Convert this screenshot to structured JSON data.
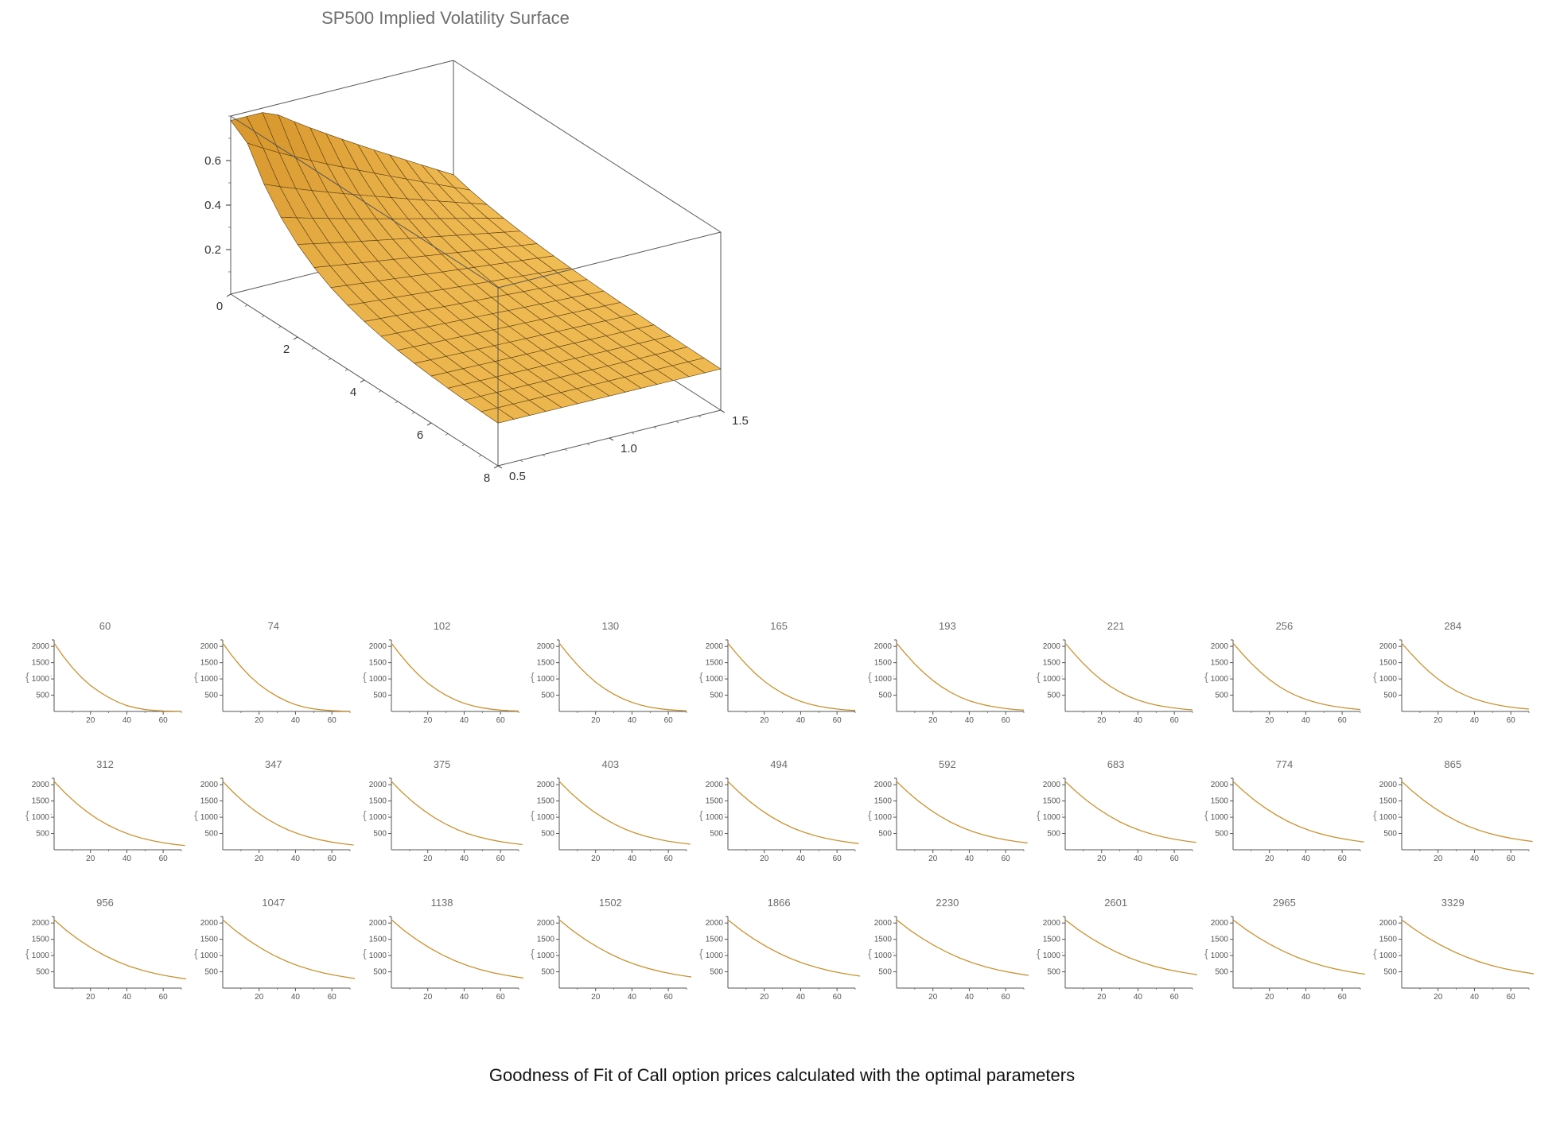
{
  "surface": {
    "title": "SP500 Implied Volatility Surface",
    "title_color": "#6e6e6e",
    "title_fontsize": 22,
    "fill_light": "#f4c15a",
    "fill_dark": "#d18e24",
    "mesh_color": "#5a3d10",
    "box_stroke": "#555555",
    "axis_color": "#333333",
    "tick_fontsize": 15,
    "x_ticks": [
      "0",
      "2",
      "4",
      "6",
      "8"
    ],
    "y_ticks": [
      "0.5",
      "1.0",
      "1.5"
    ],
    "z_ticks": [
      "0.2",
      "0.4",
      "0.6"
    ],
    "x_range": [
      0,
      8
    ],
    "y_range": [
      0.5,
      1.5
    ],
    "z_range": [
      0.2,
      0.7
    ]
  },
  "mini_grid": {
    "rows": 3,
    "cols": 9,
    "titles": [
      60,
      74,
      102,
      130,
      165,
      193,
      221,
      256,
      284,
      312,
      347,
      375,
      403,
      494,
      592,
      683,
      774,
      865,
      956,
      1047,
      1138,
      1502,
      1866,
      2230,
      2601,
      2965,
      3329
    ],
    "axis_color": "#555555",
    "tick_color": "#555555",
    "tick_fontsize": 10,
    "curve_color": "#d18e24",
    "curve_color2": "#5a8fd6",
    "curve_width": 1.2,
    "background_color": "#ffffff",
    "title_color": "#6e6e6e",
    "marker_left_char": "{",
    "marker_right_char": "}",
    "marker_mid_char": "·",
    "x_ticks": [
      20,
      40,
      60
    ],
    "y_ticks": [
      500,
      1000,
      1500,
      2000
    ],
    "xlim": [
      0,
      70
    ],
    "ylim": [
      0,
      2200
    ],
    "curves": {
      "60": [
        [
          0,
          2100
        ],
        [
          5,
          1700
        ],
        [
          10,
          1350
        ],
        [
          15,
          1050
        ],
        [
          20,
          800
        ],
        [
          25,
          600
        ],
        [
          30,
          430
        ],
        [
          35,
          290
        ],
        [
          40,
          180
        ],
        [
          45,
          110
        ],
        [
          50,
          60
        ],
        [
          55,
          30
        ],
        [
          60,
          15
        ],
        [
          65,
          8
        ],
        [
          70,
          5
        ]
      ],
      "74": [
        [
          0,
          2100
        ],
        [
          5,
          1720
        ],
        [
          10,
          1380
        ],
        [
          15,
          1080
        ],
        [
          20,
          830
        ],
        [
          25,
          630
        ],
        [
          30,
          460
        ],
        [
          35,
          320
        ],
        [
          40,
          210
        ],
        [
          45,
          130
        ],
        [
          50,
          80
        ],
        [
          55,
          45
        ],
        [
          60,
          25
        ],
        [
          65,
          12
        ],
        [
          70,
          6
        ]
      ],
      "102": [
        [
          0,
          2100
        ],
        [
          5,
          1740
        ],
        [
          10,
          1410
        ],
        [
          15,
          1120
        ],
        [
          20,
          870
        ],
        [
          25,
          670
        ],
        [
          30,
          500
        ],
        [
          35,
          360
        ],
        [
          40,
          250
        ],
        [
          45,
          170
        ],
        [
          50,
          110
        ],
        [
          55,
          70
        ],
        [
          60,
          40
        ],
        [
          65,
          22
        ],
        [
          70,
          12
        ]
      ],
      "130": [
        [
          0,
          2100
        ],
        [
          5,
          1750
        ],
        [
          10,
          1430
        ],
        [
          15,
          1150
        ],
        [
          20,
          900
        ],
        [
          25,
          700
        ],
        [
          30,
          530
        ],
        [
          35,
          390
        ],
        [
          40,
          280
        ],
        [
          45,
          195
        ],
        [
          50,
          130
        ],
        [
          55,
          85
        ],
        [
          60,
          55
        ],
        [
          65,
          33
        ],
        [
          70,
          20
        ]
      ],
      "165": [
        [
          0,
          2100
        ],
        [
          5,
          1760
        ],
        [
          10,
          1450
        ],
        [
          15,
          1170
        ],
        [
          20,
          930
        ],
        [
          25,
          730
        ],
        [
          30,
          560
        ],
        [
          35,
          420
        ],
        [
          40,
          310
        ],
        [
          45,
          225
        ],
        [
          50,
          160
        ],
        [
          55,
          110
        ],
        [
          60,
          75
        ],
        [
          65,
          48
        ],
        [
          70,
          30
        ]
      ],
      "193": [
        [
          0,
          2100
        ],
        [
          5,
          1770
        ],
        [
          10,
          1460
        ],
        [
          15,
          1190
        ],
        [
          20,
          950
        ],
        [
          25,
          750
        ],
        [
          30,
          580
        ],
        [
          35,
          440
        ],
        [
          40,
          330
        ],
        [
          45,
          245
        ],
        [
          50,
          180
        ],
        [
          55,
          130
        ],
        [
          60,
          90
        ],
        [
          65,
          60
        ],
        [
          70,
          40
        ]
      ],
      "221": [
        [
          0,
          2100
        ],
        [
          5,
          1775
        ],
        [
          10,
          1470
        ],
        [
          15,
          1200
        ],
        [
          20,
          965
        ],
        [
          25,
          765
        ],
        [
          30,
          600
        ],
        [
          35,
          460
        ],
        [
          40,
          350
        ],
        [
          45,
          265
        ],
        [
          50,
          195
        ],
        [
          55,
          145
        ],
        [
          60,
          105
        ],
        [
          65,
          72
        ],
        [
          70,
          50
        ]
      ],
      "256": [
        [
          0,
          2100
        ],
        [
          5,
          1780
        ],
        [
          10,
          1480
        ],
        [
          15,
          1215
        ],
        [
          20,
          980
        ],
        [
          25,
          780
        ],
        [
          30,
          615
        ],
        [
          35,
          480
        ],
        [
          40,
          370
        ],
        [
          45,
          285
        ],
        [
          50,
          215
        ],
        [
          55,
          160
        ],
        [
          60,
          120
        ],
        [
          65,
          85
        ],
        [
          70,
          60
        ]
      ],
      "284": [
        [
          0,
          2100
        ],
        [
          5,
          1785
        ],
        [
          10,
          1490
        ],
        [
          15,
          1225
        ],
        [
          20,
          995
        ],
        [
          25,
          795
        ],
        [
          30,
          630
        ],
        [
          35,
          495
        ],
        [
          40,
          385
        ],
        [
          45,
          300
        ],
        [
          50,
          230
        ],
        [
          55,
          175
        ],
        [
          60,
          132
        ],
        [
          65,
          98
        ],
        [
          70,
          72
        ]
      ],
      "312": [
        [
          0,
          2100
        ],
        [
          6,
          1750
        ],
        [
          12,
          1440
        ],
        [
          18,
          1170
        ],
        [
          24,
          940
        ],
        [
          30,
          750
        ],
        [
          36,
          590
        ],
        [
          42,
          460
        ],
        [
          48,
          360
        ],
        [
          54,
          280
        ],
        [
          60,
          215
        ],
        [
          66,
          165
        ],
        [
          72,
          130
        ]
      ],
      "347": [
        [
          0,
          2100
        ],
        [
          6,
          1755
        ],
        [
          12,
          1450
        ],
        [
          18,
          1185
        ],
        [
          24,
          960
        ],
        [
          30,
          770
        ],
        [
          36,
          610
        ],
        [
          42,
          480
        ],
        [
          48,
          380
        ],
        [
          54,
          300
        ],
        [
          60,
          235
        ],
        [
          66,
          185
        ],
        [
          72,
          145
        ]
      ],
      "375": [
        [
          0,
          2100
        ],
        [
          6,
          1760
        ],
        [
          12,
          1460
        ],
        [
          18,
          1200
        ],
        [
          24,
          975
        ],
        [
          30,
          785
        ],
        [
          36,
          625
        ],
        [
          42,
          495
        ],
        [
          48,
          395
        ],
        [
          54,
          315
        ],
        [
          60,
          250
        ],
        [
          66,
          200
        ],
        [
          72,
          160
        ]
      ],
      "403": [
        [
          0,
          2100
        ],
        [
          6,
          1765
        ],
        [
          12,
          1470
        ],
        [
          18,
          1210
        ],
        [
          24,
          988
        ],
        [
          30,
          798
        ],
        [
          36,
          638
        ],
        [
          42,
          510
        ],
        [
          48,
          408
        ],
        [
          54,
          328
        ],
        [
          60,
          262
        ],
        [
          66,
          212
        ],
        [
          72,
          172
        ]
      ],
      "494": [
        [
          0,
          2100
        ],
        [
          6,
          1775
        ],
        [
          12,
          1485
        ],
        [
          18,
          1230
        ],
        [
          24,
          1010
        ],
        [
          30,
          820
        ],
        [
          36,
          662
        ],
        [
          42,
          535
        ],
        [
          48,
          432
        ],
        [
          54,
          350
        ],
        [
          60,
          285
        ],
        [
          66,
          232
        ],
        [
          72,
          190
        ]
      ],
      "592": [
        [
          0,
          2100
        ],
        [
          6,
          1782
        ],
        [
          12,
          1498
        ],
        [
          18,
          1248
        ],
        [
          24,
          1030
        ],
        [
          30,
          842
        ],
        [
          36,
          685
        ],
        [
          42,
          558
        ],
        [
          48,
          455
        ],
        [
          54,
          372
        ],
        [
          60,
          306
        ],
        [
          66,
          252
        ],
        [
          72,
          208
        ]
      ],
      "683": [
        [
          0,
          2100
        ],
        [
          6,
          1788
        ],
        [
          12,
          1508
        ],
        [
          18,
          1262
        ],
        [
          24,
          1048
        ],
        [
          30,
          860
        ],
        [
          36,
          705
        ],
        [
          42,
          578
        ],
        [
          48,
          475
        ],
        [
          54,
          392
        ],
        [
          60,
          325
        ],
        [
          66,
          270
        ],
        [
          72,
          225
        ]
      ],
      "774": [
        [
          0,
          2100
        ],
        [
          6,
          1792
        ],
        [
          12,
          1516
        ],
        [
          18,
          1274
        ],
        [
          24,
          1062
        ],
        [
          30,
          876
        ],
        [
          36,
          722
        ],
        [
          42,
          595
        ],
        [
          48,
          492
        ],
        [
          54,
          408
        ],
        [
          60,
          342
        ],
        [
          66,
          286
        ],
        [
          72,
          240
        ]
      ],
      "865": [
        [
          0,
          2100
        ],
        [
          6,
          1796
        ],
        [
          12,
          1524
        ],
        [
          18,
          1284
        ],
        [
          24,
          1074
        ],
        [
          30,
          890
        ],
        [
          36,
          736
        ],
        [
          42,
          610
        ],
        [
          48,
          506
        ],
        [
          54,
          422
        ],
        [
          60,
          355
        ],
        [
          66,
          300
        ],
        [
          72,
          254
        ]
      ],
      "956": [
        [
          0,
          2100
        ],
        [
          7,
          1760
        ],
        [
          14,
          1470
        ],
        [
          21,
          1215
        ],
        [
          28,
          995
        ],
        [
          35,
          812
        ],
        [
          42,
          660
        ],
        [
          49,
          540
        ],
        [
          56,
          442
        ],
        [
          63,
          365
        ],
        [
          70,
          302
        ],
        [
          76,
          258
        ]
      ],
      "1047": [
        [
          0,
          2100
        ],
        [
          7,
          1765
        ],
        [
          14,
          1478
        ],
        [
          21,
          1226
        ],
        [
          28,
          1008
        ],
        [
          35,
          826
        ],
        [
          42,
          675
        ],
        [
          49,
          555
        ],
        [
          56,
          456
        ],
        [
          63,
          380
        ],
        [
          70,
          316
        ],
        [
          76,
          272
        ]
      ],
      "1138": [
        [
          0,
          2100
        ],
        [
          7,
          1770
        ],
        [
          14,
          1485
        ],
        [
          21,
          1236
        ],
        [
          28,
          1020
        ],
        [
          35,
          838
        ],
        [
          42,
          688
        ],
        [
          49,
          568
        ],
        [
          56,
          470
        ],
        [
          63,
          392
        ],
        [
          70,
          330
        ],
        [
          76,
          284
        ]
      ],
      "1502": [
        [
          0,
          2100
        ],
        [
          7,
          1782
        ],
        [
          14,
          1504
        ],
        [
          21,
          1262
        ],
        [
          28,
          1050
        ],
        [
          35,
          870
        ],
        [
          42,
          722
        ],
        [
          49,
          602
        ],
        [
          56,
          504
        ],
        [
          63,
          426
        ],
        [
          70,
          362
        ],
        [
          76,
          316
        ]
      ],
      "1866": [
        [
          0,
          2100
        ],
        [
          7,
          1790
        ],
        [
          14,
          1518
        ],
        [
          21,
          1282
        ],
        [
          28,
          1074
        ],
        [
          35,
          896
        ],
        [
          42,
          750
        ],
        [
          49,
          630
        ],
        [
          56,
          532
        ],
        [
          63,
          454
        ],
        [
          70,
          390
        ],
        [
          76,
          342
        ]
      ],
      "2230": [
        [
          0,
          2100
        ],
        [
          7,
          1796
        ],
        [
          14,
          1530
        ],
        [
          21,
          1298
        ],
        [
          28,
          1094
        ],
        [
          35,
          918
        ],
        [
          42,
          772
        ],
        [
          49,
          652
        ],
        [
          56,
          554
        ],
        [
          63,
          476
        ],
        [
          70,
          412
        ],
        [
          76,
          364
        ]
      ],
      "2601": [
        [
          0,
          2100
        ],
        [
          7,
          1802
        ],
        [
          14,
          1540
        ],
        [
          21,
          1312
        ],
        [
          28,
          1110
        ],
        [
          35,
          936
        ],
        [
          42,
          792
        ],
        [
          49,
          672
        ],
        [
          56,
          574
        ],
        [
          63,
          496
        ],
        [
          70,
          432
        ],
        [
          76,
          382
        ]
      ],
      "2965": [
        [
          0,
          2100
        ],
        [
          7,
          1806
        ],
        [
          14,
          1548
        ],
        [
          21,
          1324
        ],
        [
          28,
          1124
        ],
        [
          35,
          952
        ],
        [
          42,
          808
        ],
        [
          49,
          688
        ],
        [
          56,
          590
        ],
        [
          63,
          512
        ],
        [
          70,
          448
        ],
        [
          76,
          398
        ]
      ],
      "3329": [
        [
          0,
          2100
        ],
        [
          7,
          1810
        ],
        [
          14,
          1556
        ],
        [
          21,
          1334
        ],
        [
          28,
          1136
        ],
        [
          35,
          966
        ],
        [
          42,
          822
        ],
        [
          49,
          702
        ],
        [
          56,
          604
        ],
        [
          63,
          526
        ],
        [
          70,
          462
        ],
        [
          76,
          412
        ]
      ]
    }
  },
  "caption": "Goodness of Fit of Call option prices calculated with the optimal parameters",
  "caption_color": "#111111",
  "caption_fontsize": 22
}
